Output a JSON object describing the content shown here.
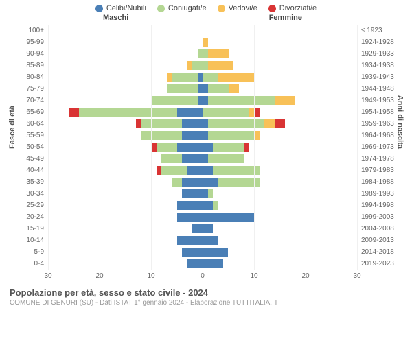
{
  "legend": [
    {
      "label": "Celibi/Nubili",
      "color": "#4a7fb6"
    },
    {
      "label": "Coniugati/e",
      "color": "#b4d793"
    },
    {
      "label": "Vedovi/e",
      "color": "#f8c158"
    },
    {
      "label": "Divorziati/e",
      "color": "#d93434"
    }
  ],
  "header_male": "Maschi",
  "header_female": "Femmine",
  "axis_left": "Fasce di età",
  "axis_right": "Anni di nascita",
  "x_max": 30,
  "x_ticks": [
    30,
    20,
    10,
    0,
    10,
    20,
    30
  ],
  "title": "Popolazione per età, sesso e stato civile - 2024",
  "subtitle": "COMUNE DI GENURI (SU) - Dati ISTAT 1° gennaio 2024 - Elaborazione TUTTITALIA.IT",
  "rows": [
    {
      "age": "100+",
      "birth": "≤ 1923",
      "m": {
        "c": 0,
        "co": 0,
        "v": 0,
        "d": 0
      },
      "f": {
        "c": 0,
        "co": 0,
        "v": 0,
        "d": 0
      }
    },
    {
      "age": "95-99",
      "birth": "1924-1928",
      "m": {
        "c": 0,
        "co": 0,
        "v": 0,
        "d": 0
      },
      "f": {
        "c": 0,
        "co": 0,
        "v": 1,
        "d": 0
      }
    },
    {
      "age": "90-94",
      "birth": "1929-1933",
      "m": {
        "c": 0,
        "co": 1,
        "v": 0,
        "d": 0
      },
      "f": {
        "c": 0,
        "co": 1,
        "v": 4,
        "d": 0
      }
    },
    {
      "age": "85-89",
      "birth": "1934-1938",
      "m": {
        "c": 0,
        "co": 2,
        "v": 1,
        "d": 0
      },
      "f": {
        "c": 0,
        "co": 1,
        "v": 5,
        "d": 0
      }
    },
    {
      "age": "80-84",
      "birth": "1939-1943",
      "m": {
        "c": 1,
        "co": 5,
        "v": 1,
        "d": 0
      },
      "f": {
        "c": 0,
        "co": 3,
        "v": 7,
        "d": 0
      }
    },
    {
      "age": "75-79",
      "birth": "1944-1948",
      "m": {
        "c": 1,
        "co": 6,
        "v": 0,
        "d": 0
      },
      "f": {
        "c": 1,
        "co": 4,
        "v": 2,
        "d": 0
      }
    },
    {
      "age": "70-74",
      "birth": "1949-1953",
      "m": {
        "c": 1,
        "co": 9,
        "v": 0,
        "d": 0
      },
      "f": {
        "c": 1,
        "co": 13,
        "v": 4,
        "d": 0
      }
    },
    {
      "age": "65-69",
      "birth": "1954-1958",
      "m": {
        "c": 5,
        "co": 19,
        "v": 0,
        "d": 2
      },
      "f": {
        "c": 0,
        "co": 9,
        "v": 1,
        "d": 1
      }
    },
    {
      "age": "60-64",
      "birth": "1959-1963",
      "m": {
        "c": 4,
        "co": 8,
        "v": 0,
        "d": 1
      },
      "f": {
        "c": 1,
        "co": 11,
        "v": 2,
        "d": 2
      }
    },
    {
      "age": "55-59",
      "birth": "1964-1968",
      "m": {
        "c": 4,
        "co": 8,
        "v": 0,
        "d": 0
      },
      "f": {
        "c": 1,
        "co": 9,
        "v": 1,
        "d": 0
      }
    },
    {
      "age": "50-54",
      "birth": "1969-1973",
      "m": {
        "c": 5,
        "co": 4,
        "v": 0,
        "d": 1
      },
      "f": {
        "c": 2,
        "co": 6,
        "v": 0,
        "d": 1
      }
    },
    {
      "age": "45-49",
      "birth": "1974-1978",
      "m": {
        "c": 4,
        "co": 4,
        "v": 0,
        "d": 0
      },
      "f": {
        "c": 1,
        "co": 7,
        "v": 0,
        "d": 0
      }
    },
    {
      "age": "40-44",
      "birth": "1979-1983",
      "m": {
        "c": 3,
        "co": 5,
        "v": 0,
        "d": 1
      },
      "f": {
        "c": 2,
        "co": 9,
        "v": 0,
        "d": 0
      }
    },
    {
      "age": "35-39",
      "birth": "1984-1988",
      "m": {
        "c": 4,
        "co": 2,
        "v": 0,
        "d": 0
      },
      "f": {
        "c": 3,
        "co": 8,
        "v": 0,
        "d": 0
      }
    },
    {
      "age": "30-34",
      "birth": "1989-1993",
      "m": {
        "c": 4,
        "co": 0,
        "v": 0,
        "d": 0
      },
      "f": {
        "c": 1,
        "co": 1,
        "v": 0,
        "d": 0
      }
    },
    {
      "age": "25-29",
      "birth": "1994-1998",
      "m": {
        "c": 5,
        "co": 0,
        "v": 0,
        "d": 0
      },
      "f": {
        "c": 2,
        "co": 1,
        "v": 0,
        "d": 0
      }
    },
    {
      "age": "20-24",
      "birth": "1999-2003",
      "m": {
        "c": 5,
        "co": 0,
        "v": 0,
        "d": 0
      },
      "f": {
        "c": 10,
        "co": 0,
        "v": 0,
        "d": 0
      }
    },
    {
      "age": "15-19",
      "birth": "2004-2008",
      "m": {
        "c": 2,
        "co": 0,
        "v": 0,
        "d": 0
      },
      "f": {
        "c": 2,
        "co": 0,
        "v": 0,
        "d": 0
      }
    },
    {
      "age": "10-14",
      "birth": "2009-2013",
      "m": {
        "c": 5,
        "co": 0,
        "v": 0,
        "d": 0
      },
      "f": {
        "c": 3,
        "co": 0,
        "v": 0,
        "d": 0
      }
    },
    {
      "age": "5-9",
      "birth": "2014-2018",
      "m": {
        "c": 4,
        "co": 0,
        "v": 0,
        "d": 0
      },
      "f": {
        "c": 5,
        "co": 0,
        "v": 0,
        "d": 0
      }
    },
    {
      "age": "0-4",
      "birth": "2019-2023",
      "m": {
        "c": 3,
        "co": 0,
        "v": 0,
        "d": 0
      },
      "f": {
        "c": 4,
        "co": 0,
        "v": 0,
        "d": 0
      }
    }
  ]
}
